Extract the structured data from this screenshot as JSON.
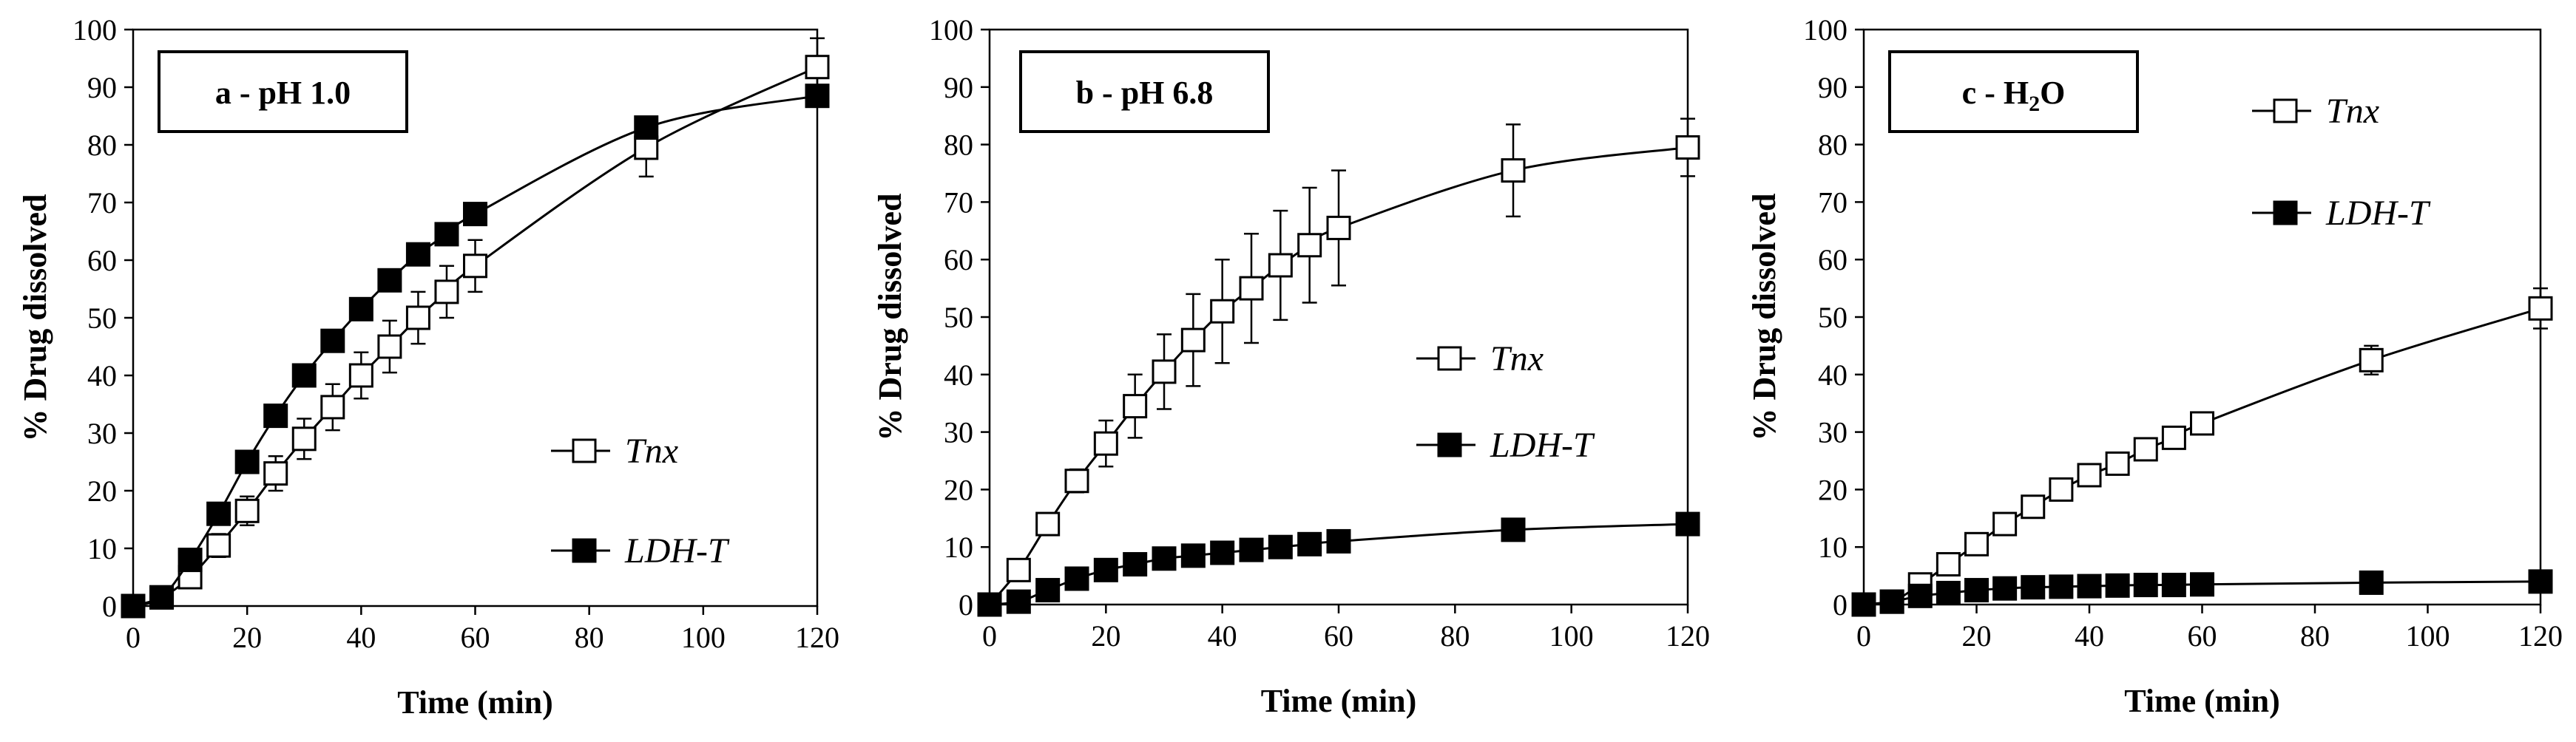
{
  "figure": {
    "background": "#ffffff"
  },
  "chart_data": [
    {
      "type": "line",
      "panel": "a",
      "title": "a - pH 1.0",
      "title_sub": "",
      "title_tail": "",
      "xlabel": "Time (min)",
      "ylabel": "% Drug dissolved",
      "xlim": [
        0,
        120
      ],
      "ylim": [
        0,
        100
      ],
      "xticks": [
        0,
        20,
        40,
        60,
        80,
        100,
        120
      ],
      "yticks": [
        0,
        10,
        20,
        30,
        40,
        50,
        60,
        70,
        80,
        90,
        100
      ],
      "legend_position": "center-right",
      "series": [
        {
          "name": "Tnx",
          "marker": "open-square",
          "color": "#000000",
          "x": [
            0,
            5,
            10,
            15,
            20,
            25,
            30,
            35,
            40,
            45,
            50,
            55,
            60,
            90,
            120
          ],
          "y": [
            0,
            1.5,
            5,
            10.5,
            16.5,
            23,
            29,
            34.5,
            40,
            45,
            50,
            54.5,
            59,
            79.5,
            93.5
          ],
          "err": [
            0,
            0.5,
            1,
            2,
            2.5,
            3,
            3.5,
            4,
            4,
            4.5,
            4.5,
            4.5,
            4.5,
            5,
            5
          ]
        },
        {
          "name": "LDH-T",
          "marker": "filled-square",
          "color": "#000000",
          "x": [
            0,
            5,
            10,
            15,
            20,
            25,
            30,
            35,
            40,
            45,
            50,
            55,
            60,
            90,
            120
          ],
          "y": [
            0,
            1.5,
            8,
            16,
            25,
            33,
            40,
            46,
            51.5,
            56.5,
            61,
            64.5,
            68,
            83,
            88.5
          ],
          "err": []
        }
      ]
    },
    {
      "type": "line",
      "panel": "b",
      "title": "b - pH 6.8",
      "title_sub": "",
      "title_tail": "",
      "xlabel": "Time (min)",
      "ylabel": "% Drug dissolved",
      "xlim": [
        0,
        120
      ],
      "ylim": [
        0,
        100
      ],
      "xticks": [
        0,
        20,
        40,
        60,
        80,
        100,
        120
      ],
      "yticks": [
        0,
        10,
        20,
        30,
        40,
        50,
        60,
        70,
        80,
        90,
        100
      ],
      "legend_position": "center-right",
      "series": [
        {
          "name": "Tnx",
          "marker": "open-square",
          "color": "#000000",
          "x": [
            0,
            5,
            10,
            15,
            20,
            25,
            30,
            35,
            40,
            45,
            50,
            55,
            60,
            90,
            120
          ],
          "y": [
            0,
            6,
            14,
            21.5,
            28,
            34.5,
            40.5,
            46,
            51,
            55,
            59,
            62.5,
            65.5,
            75.5,
            79.5
          ],
          "err": [
            0,
            0.5,
            1,
            2,
            4,
            5.5,
            6.5,
            8,
            9,
            9.5,
            9.5,
            10,
            10,
            8,
            5
          ]
        },
        {
          "name": "LDH-T",
          "marker": "filled-square",
          "color": "#000000",
          "x": [
            0,
            5,
            10,
            15,
            20,
            25,
            30,
            35,
            40,
            45,
            50,
            55,
            60,
            90,
            120
          ],
          "y": [
            0,
            0.5,
            2.5,
            4.5,
            6,
            7,
            8,
            8.5,
            9,
            9.5,
            10,
            10.5,
            11,
            13,
            14
          ],
          "err": []
        }
      ]
    },
    {
      "type": "line",
      "panel": "c",
      "title": "c - H",
      "title_sub": "2",
      "title_tail": "O",
      "xlabel": "Time (min)",
      "ylabel": "% Drug dissolved",
      "xlim": [
        0,
        120
      ],
      "ylim": [
        0,
        100
      ],
      "xticks": [
        0,
        20,
        40,
        60,
        80,
        100,
        120
      ],
      "yticks": [
        0,
        10,
        20,
        30,
        40,
        50,
        60,
        70,
        80,
        90,
        100
      ],
      "legend_position": "top-right",
      "series": [
        {
          "name": "Tnx",
          "marker": "open-square",
          "color": "#000000",
          "x": [
            0,
            5,
            10,
            15,
            20,
            25,
            30,
            35,
            40,
            45,
            50,
            55,
            60,
            90,
            120
          ],
          "y": [
            0,
            0.5,
            3.5,
            7,
            10.5,
            14,
            17,
            20,
            22.5,
            24.5,
            27,
            29,
            31.5,
            42.5,
            51.5
          ],
          "err": [
            0,
            0.2,
            0.5,
            0.5,
            0.5,
            0.5,
            0.5,
            0.5,
            0.5,
            0.5,
            0.5,
            0.5,
            1,
            2.5,
            3.5
          ]
        },
        {
          "name": "LDH-T",
          "marker": "filled-square",
          "color": "#000000",
          "x": [
            0,
            5,
            10,
            15,
            20,
            25,
            30,
            35,
            40,
            45,
            50,
            55,
            60,
            90,
            120
          ],
          "y": [
            0,
            0.5,
            1.5,
            2,
            2.5,
            2.8,
            3,
            3.1,
            3.2,
            3.3,
            3.4,
            3.4,
            3.5,
            3.8,
            4
          ],
          "err": []
        }
      ]
    }
  ]
}
